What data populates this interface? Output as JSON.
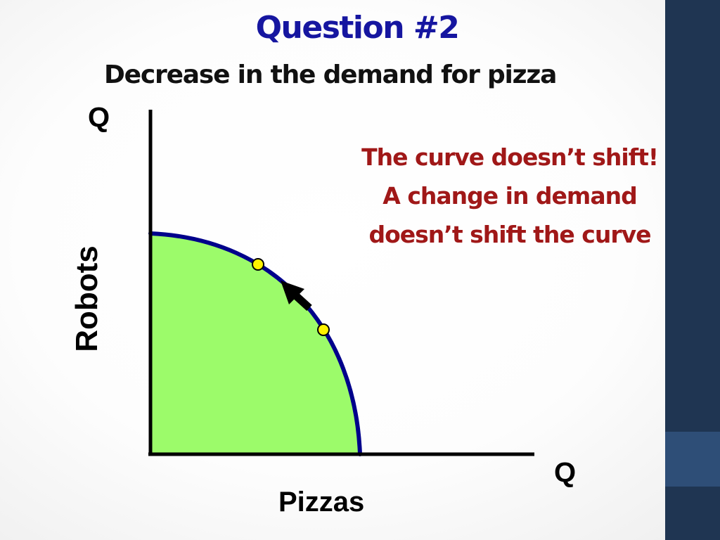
{
  "slide": {
    "title": "Question #2",
    "subtitle": "Decrease in the demand for pizza",
    "note_lines": [
      "The curve doesn’t shift!",
      "A change in demand",
      "doesn’t shift the curve"
    ]
  },
  "axes": {
    "y_quantity_label": "Q",
    "y_label": "Robots",
    "x_quantity_label": "Q",
    "x_label": "Pizzas"
  },
  "colors": {
    "title": "#1616a0",
    "note": "#a01818",
    "curve": "#00008b",
    "region_fill": "#9cfb6a",
    "point_fill": "#fff200",
    "sidebar": "#1f3552",
    "sidebar_accent": "#2e4e77"
  },
  "icons": {
    "movement_arrow": "arrow-up-left-icon"
  }
}
